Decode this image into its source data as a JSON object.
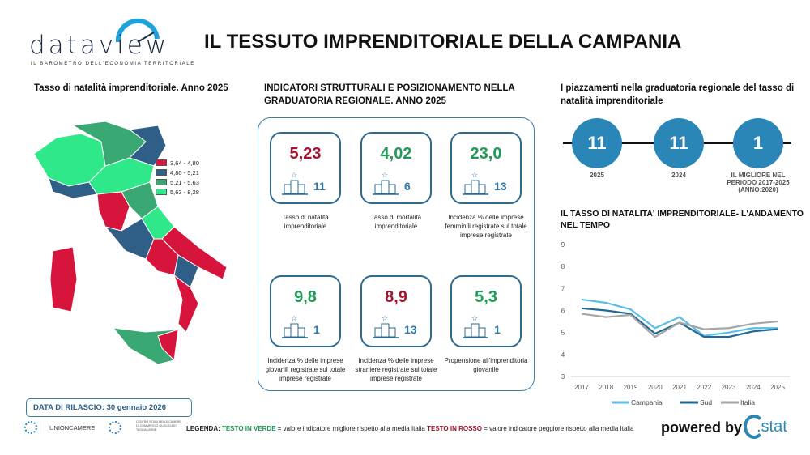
{
  "header": {
    "logo_text": "dataview",
    "logo_tagline": "IL BAROMETRO DELL'ECONOMIA TERRITORIALE",
    "title": "IL TESSUTO IMPRENDITORIALE DELLA CAMPANIA"
  },
  "map": {
    "title": "Tasso di natalità imprenditoriale. Anno 2025",
    "legend": [
      {
        "label": "3,64 - 4,80",
        "color": "#d6143c"
      },
      {
        "label": "4,80 - 5,21",
        "color": "#2f5f86"
      },
      {
        "label": "5,21 - 5,63",
        "color": "#3aa872"
      },
      {
        "label": "5,63 - 8,28",
        "color": "#2fe88a"
      }
    ]
  },
  "indicators": {
    "title_line1": "INDICATORI STRUTTURALI E POSIZIONAMENTO NELLA",
    "title_line2": "GRADUATORIA REGIONALE. ANNO 2025",
    "cards": [
      {
        "value": "5,23",
        "rank": "11",
        "color": "red",
        "label": "Tasso di natalità imprenditoriale"
      },
      {
        "value": "4,02",
        "rank": "6",
        "color": "green",
        "label": "Tasso di mortalità imprenditoriale"
      },
      {
        "value": "23,0",
        "rank": "13",
        "color": "green",
        "label": "Incidenza % delle imprese femminili registrate sul totale imprese registrate"
      },
      {
        "value": "9,8",
        "rank": "1",
        "color": "green",
        "label": "Incidenza % delle imprese giovanili registrate sul totale imprese registrate"
      },
      {
        "value": "8,9",
        "rank": "13",
        "color": "red",
        "label": "Incidenza % delle imprese straniere registrate sul totale imprese registrate"
      },
      {
        "value": "5,3",
        "rank": "1",
        "color": "green",
        "label": "Propensione all'imprenditoria giovanile"
      }
    ]
  },
  "ranking": {
    "title": "I piazzamenti nella graduatoria regionale del tasso di natalità imprenditoriale",
    "items": [
      {
        "value": "11",
        "label": "2025"
      },
      {
        "value": "11",
        "label": "2024"
      },
      {
        "value": "1",
        "label": "IL MIGLIORE NEL PERIODO 2017-2025 (ANNO:2020)"
      }
    ]
  },
  "chart_data": {
    "type": "line",
    "title": "IL TASSO DI NATALITA' IMPRENDITORIALE- L'ANDAMENTO NEL TEMPO",
    "x": [
      "2017",
      "2018",
      "2019",
      "2020",
      "2021",
      "2022",
      "2023",
      "2024",
      "2025"
    ],
    "ylim": [
      3,
      9
    ],
    "yticks": [
      "3",
      "4",
      "5",
      "6",
      "7",
      "8",
      "9"
    ],
    "legend_position": "bottom",
    "series": [
      {
        "name": "Campania",
        "color": "#5bbde6",
        "values": [
          6.5,
          6.35,
          6.05,
          5.2,
          5.7,
          4.85,
          5.0,
          5.2,
          5.2
        ]
      },
      {
        "name": "Sud",
        "color": "#1f6a94",
        "values": [
          6.1,
          6.0,
          5.85,
          4.95,
          5.45,
          4.8,
          4.8,
          5.05,
          5.15
        ]
      },
      {
        "name": "Italia",
        "color": "#a6a6a6",
        "values": [
          5.85,
          5.7,
          5.8,
          4.8,
          5.45,
          5.15,
          5.2,
          5.4,
          5.5
        ]
      }
    ]
  },
  "footer": {
    "release": "DATA DI RILASCIO: 30 gennaio 2026",
    "unioncamere": "UNIONCAMERE",
    "tagliacarne": "CENTRO STUDI DELLE CAMERE DI COMMERCIO GUGLIELMO TAGLIACARNE",
    "legend_prefix": "LEGENDA:",
    "legend_green": "TESTO IN VERDE",
    "legend_mid": " = valore indicatore migliore rispetto alla media Italia ",
    "legend_red": "TESTO IN ROSSO",
    "legend_end": " = valore indicatore peggiore rispetto alla media Italia",
    "powered": "powered by",
    "brand": ".stat"
  }
}
